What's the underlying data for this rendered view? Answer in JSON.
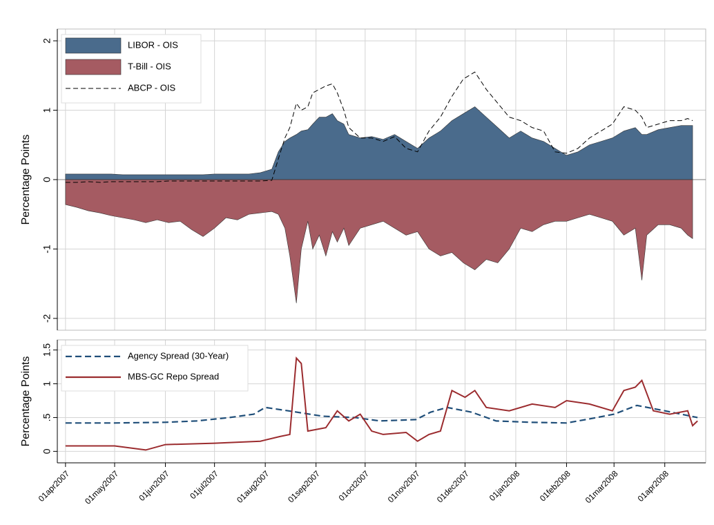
{
  "chart_data": [
    {
      "type": "area",
      "ylabel": "Percentage Points",
      "xlim": [
        "2007-03-27",
        "2008-04-26"
      ],
      "ylim": [
        -2.17,
        2.17
      ],
      "yticks": [
        2,
        1,
        0,
        -1,
        -2
      ],
      "grid": true,
      "legend": "upper left",
      "x": [
        "2007-04-01",
        "2007-04-08",
        "2007-04-15",
        "2007-04-22",
        "2007-04-29",
        "2007-05-06",
        "2007-05-13",
        "2007-05-20",
        "2007-05-27",
        "2007-06-03",
        "2007-06-10",
        "2007-06-17",
        "2007-06-24",
        "2007-07-01",
        "2007-07-08",
        "2007-07-15",
        "2007-07-22",
        "2007-07-29",
        "2007-08-05",
        "2007-08-09",
        "2007-08-13",
        "2007-08-16",
        "2007-08-20",
        "2007-08-23",
        "2007-08-27",
        "2007-08-30",
        "2007-09-03",
        "2007-09-07",
        "2007-09-11",
        "2007-09-14",
        "2007-09-18",
        "2007-09-21",
        "2007-09-28",
        "2007-10-05",
        "2007-10-12",
        "2007-10-19",
        "2007-10-26",
        "2007-11-02",
        "2007-11-09",
        "2007-11-16",
        "2007-11-23",
        "2007-11-30",
        "2007-12-07",
        "2007-12-14",
        "2007-12-21",
        "2007-12-28",
        "2008-01-04",
        "2008-01-11",
        "2008-01-18",
        "2008-01-25",
        "2008-02-01",
        "2008-02-08",
        "2008-02-15",
        "2008-02-22",
        "2008-02-29",
        "2008-03-07",
        "2008-03-14",
        "2008-03-18",
        "2008-03-21",
        "2008-03-28",
        "2008-04-04",
        "2008-04-11",
        "2008-04-15",
        "2008-04-18"
      ],
      "series": [
        {
          "name": "LIBOR - OIS",
          "style": "area",
          "color": "#4a6b8c",
          "values": [
            0.08,
            0.08,
            0.08,
            0.08,
            0.08,
            0.07,
            0.07,
            0.07,
            0.07,
            0.07,
            0.07,
            0.07,
            0.07,
            0.08,
            0.08,
            0.08,
            0.08,
            0.1,
            0.15,
            0.4,
            0.55,
            0.6,
            0.65,
            0.7,
            0.72,
            0.8,
            0.9,
            0.9,
            0.95,
            0.85,
            0.8,
            0.65,
            0.6,
            0.62,
            0.58,
            0.65,
            0.55,
            0.45,
            0.6,
            0.7,
            0.85,
            0.95,
            1.05,
            0.9,
            0.75,
            0.6,
            0.7,
            0.6,
            0.55,
            0.45,
            0.35,
            0.4,
            0.5,
            0.55,
            0.6,
            0.7,
            0.75,
            0.65,
            0.65,
            0.72,
            0.75,
            0.78,
            0.78,
            0.78
          ]
        },
        {
          "name": "T-Bill - OIS",
          "style": "area",
          "color": "#a55b62",
          "values": [
            -0.36,
            -0.4,
            -0.45,
            -0.48,
            -0.52,
            -0.55,
            -0.58,
            -0.62,
            -0.58,
            -0.62,
            -0.6,
            -0.72,
            -0.82,
            -0.7,
            -0.55,
            -0.58,
            -0.5,
            -0.48,
            -0.46,
            -0.5,
            -0.7,
            -1.1,
            -1.78,
            -1.0,
            -0.6,
            -1.0,
            -0.8,
            -1.1,
            -0.75,
            -0.9,
            -0.7,
            -0.95,
            -0.7,
            -0.65,
            -0.6,
            -0.7,
            -0.8,
            -0.75,
            -1.0,
            -1.1,
            -1.05,
            -1.2,
            -1.3,
            -1.15,
            -1.2,
            -1.0,
            -0.7,
            -0.75,
            -0.65,
            -0.6,
            -0.6,
            -0.55,
            -0.5,
            -0.55,
            -0.6,
            -0.8,
            -0.7,
            -1.45,
            -0.8,
            -0.65,
            -0.65,
            -0.7,
            -0.8,
            -0.85
          ]
        },
        {
          "name": "ABCP - OIS",
          "style": "dashed",
          "color": "#000000",
          "values": [
            -0.04,
            -0.04,
            -0.03,
            -0.04,
            -0.03,
            -0.03,
            -0.03,
            -0.03,
            -0.03,
            -0.02,
            -0.02,
            -0.02,
            -0.02,
            -0.02,
            -0.02,
            -0.02,
            -0.02,
            -0.02,
            -0.01,
            0.3,
            0.6,
            0.75,
            1.1,
            1.0,
            1.05,
            1.25,
            1.3,
            1.35,
            1.38,
            1.25,
            1.0,
            0.75,
            0.6,
            0.6,
            0.55,
            0.62,
            0.45,
            0.4,
            0.7,
            0.9,
            1.2,
            1.45,
            1.55,
            1.3,
            1.1,
            0.9,
            0.85,
            0.75,
            0.7,
            0.4,
            0.38,
            0.45,
            0.6,
            0.7,
            0.8,
            1.05,
            1.0,
            0.9,
            0.75,
            0.8,
            0.85,
            0.85,
            0.88,
            0.85
          ]
        }
      ]
    },
    {
      "type": "line",
      "ylabel": "Percentage Points",
      "xlim": [
        "2007-03-27",
        "2008-04-26"
      ],
      "ylim": [
        -0.17,
        1.65
      ],
      "yticks": [
        0,
        {
          "value": 0.5,
          "label": ".5"
        },
        1,
        1.5
      ],
      "grid": true,
      "legend": "upper left",
      "xticks": [
        {
          "value": "2007-04-01",
          "label": "01apr2007"
        },
        {
          "value": "2007-05-01",
          "label": "01may2007"
        },
        {
          "value": "2007-06-01",
          "label": "01jun2007"
        },
        {
          "value": "2007-07-01",
          "label": "01jul2007"
        },
        {
          "value": "2007-08-01",
          "label": "01aug2007"
        },
        {
          "value": "2007-09-01",
          "label": "01sep2007"
        },
        {
          "value": "2007-10-01",
          "label": "01oct2007"
        },
        {
          "value": "2007-11-01",
          "label": "01nov2007"
        },
        {
          "value": "2007-12-01",
          "label": "01dec2007"
        },
        {
          "value": "2008-01-01",
          "label": "01jan2008"
        },
        {
          "value": "2008-02-01",
          "label": "01feb2008"
        },
        {
          "value": "2008-03-01",
          "label": "01mar2008"
        },
        {
          "value": "2008-04-01",
          "label": "01apr2008"
        }
      ],
      "series": [
        {
          "name": "Agency Spread (30-Year)",
          "style": "dashed",
          "color": "#1f4e79",
          "x": [
            "2007-04-01",
            "2007-05-01",
            "2007-06-01",
            "2007-06-20",
            "2007-07-10",
            "2007-07-25",
            "2007-08-01",
            "2007-08-15",
            "2007-09-05",
            "2007-09-25",
            "2007-10-10",
            "2007-11-01",
            "2007-11-10",
            "2007-11-20",
            "2007-12-05",
            "2007-12-20",
            "2008-01-10",
            "2008-02-01",
            "2008-02-15",
            "2008-03-01",
            "2008-03-15",
            "2008-04-01",
            "2008-04-21"
          ],
          "values": [
            0.42,
            0.42,
            0.43,
            0.45,
            0.5,
            0.55,
            0.65,
            0.6,
            0.52,
            0.5,
            0.45,
            0.47,
            0.58,
            0.65,
            0.58,
            0.45,
            0.43,
            0.42,
            0.48,
            0.55,
            0.68,
            0.6,
            0.5
          ]
        },
        {
          "name": "MBS-GC Repo Spread",
          "style": "solid",
          "color": "#9b2b2e",
          "x": [
            "2007-04-01",
            "2007-05-01",
            "2007-05-20",
            "2007-06-01",
            "2007-07-01",
            "2007-07-29",
            "2007-08-10",
            "2007-08-16",
            "2007-08-20",
            "2007-08-23",
            "2007-08-27",
            "2007-09-07",
            "2007-09-14",
            "2007-09-21",
            "2007-09-28",
            "2007-10-05",
            "2007-10-12",
            "2007-10-26",
            "2007-11-02",
            "2007-11-09",
            "2007-11-16",
            "2007-11-23",
            "2007-12-01",
            "2007-12-07",
            "2007-12-14",
            "2007-12-28",
            "2008-01-11",
            "2008-01-25",
            "2008-02-01",
            "2008-02-15",
            "2008-02-29",
            "2008-03-07",
            "2008-03-14",
            "2008-03-18",
            "2008-03-25",
            "2008-04-04",
            "2008-04-15",
            "2008-04-18",
            "2008-04-21"
          ],
          "values": [
            0.08,
            0.08,
            0.02,
            0.1,
            0.12,
            0.15,
            0.22,
            0.25,
            1.38,
            1.3,
            0.3,
            0.35,
            0.6,
            0.45,
            0.55,
            0.3,
            0.25,
            0.28,
            0.15,
            0.25,
            0.3,
            0.9,
            0.8,
            0.9,
            0.65,
            0.6,
            0.7,
            0.65,
            0.75,
            0.7,
            0.6,
            0.9,
            0.95,
            1.05,
            0.6,
            0.55,
            0.6,
            0.38,
            0.45
          ]
        }
      ]
    }
  ]
}
